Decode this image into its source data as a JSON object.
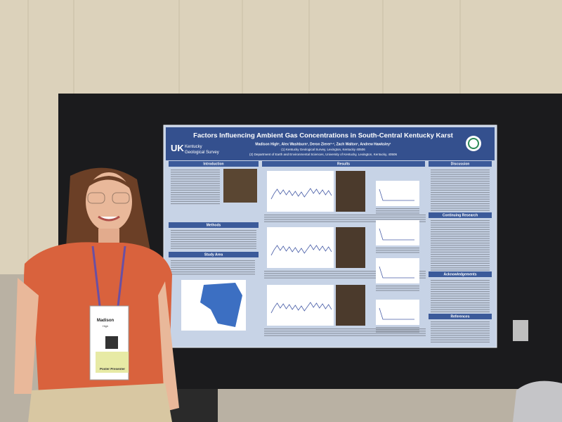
{
  "poster": {
    "title": "Factors Influencing Ambient Gas Concentrations in South-Central Kentucky Karst",
    "authors": "Madison High¹, Alex Washburn¹, Deron Zierer¹·², Zach Walton¹, Andrew Hawksley¹",
    "affiliations": [
      "(1) Kentucky Geological Survey, Lexington, Kentucky 40506",
      "(2) Department of Earth and Environmental Sciences, University of Kentucky, Lexington, Kentucky, 40506"
    ],
    "logo": [
      "Kentucky",
      "Geological Survey"
    ],
    "sections": [
      "Introduction",
      "Methods",
      "Study Area",
      "Results",
      "Discussion",
      "Continuing Research",
      "Acknowledgements",
      "References"
    ]
  },
  "badge": {
    "first_name": "Madison",
    "last_name": "High",
    "role": "Poster Presenter"
  }
}
